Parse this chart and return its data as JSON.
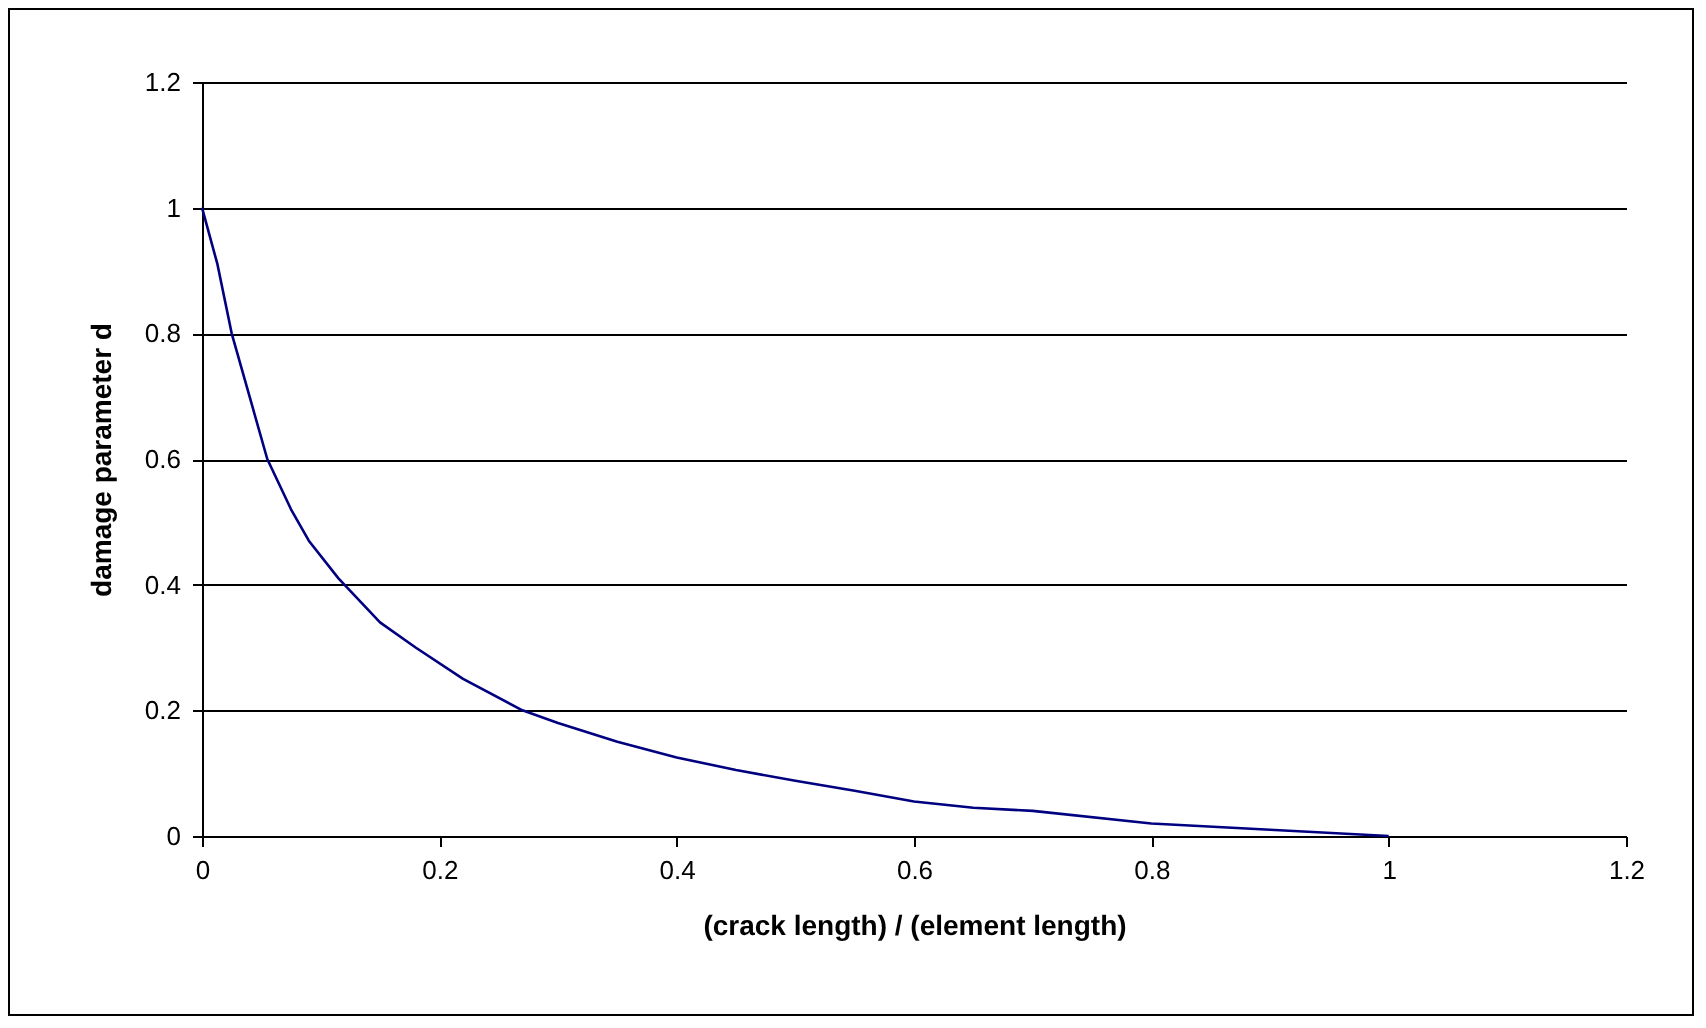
{
  "chart_data": {
    "type": "line",
    "xlabel": "(crack length) / (element length)",
    "ylabel": "damage parameter d",
    "x": [
      0,
      0.013,
      0.025,
      0.04,
      0.055,
      0.075,
      0.09,
      0.115,
      0.15,
      0.18,
      0.22,
      0.27,
      0.3,
      0.35,
      0.4,
      0.45,
      0.5,
      0.55,
      0.6,
      0.65,
      0.7,
      0.8,
      0.9,
      1
    ],
    "series": [
      {
        "color": "#000080",
        "values": [
          1,
          0.91,
          0.8,
          0.7,
          0.6,
          0.52,
          0.47,
          0.41,
          0.34,
          0.3,
          0.25,
          0.2,
          0.18,
          0.15,
          0.125,
          0.105,
          0.088,
          0.072,
          0.055,
          0.045,
          0.04,
          0.02,
          0.01,
          0
        ]
      }
    ],
    "xlim": [
      0,
      1.2
    ],
    "xticks": [
      0,
      0.2,
      0.4,
      0.6,
      0.8,
      1,
      1.2
    ],
    "ylim": [
      0,
      1.2
    ],
    "yticks": [
      0,
      0.2,
      0.4,
      0.6,
      0.8,
      1,
      1.2
    ],
    "grid": "y",
    "marker": "none",
    "line_style": "solid"
  }
}
